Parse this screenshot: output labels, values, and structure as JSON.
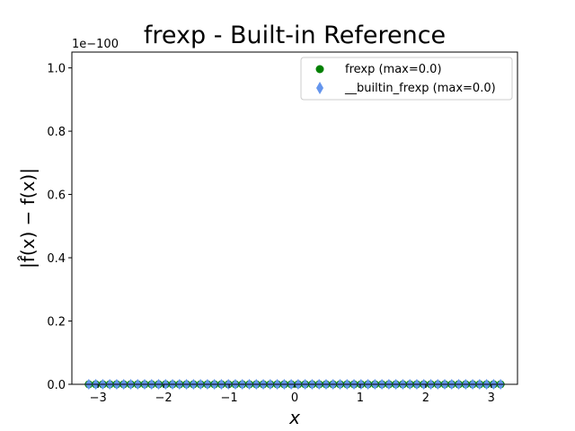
{
  "chart_data": {
    "type": "scatter",
    "title": "frexp - Built-in Reference",
    "xlabel": "x",
    "ylabel": "|f̂(x) − f(x)|",
    "y_offset_label": "1e−100",
    "xlim": [
      -3.4,
      3.4
    ],
    "ylim": [
      0,
      1.05
    ],
    "x_ticks": [
      -3,
      -2,
      -1,
      0,
      1,
      2,
      3
    ],
    "x_tick_labels": [
      "−3",
      "−2",
      "−1",
      "0",
      "1",
      "2",
      "3"
    ],
    "y_ticks": [
      0.0,
      0.2,
      0.4,
      0.6,
      0.8,
      1.0
    ],
    "y_tick_labels": [
      "0.0",
      "0.2",
      "0.4",
      "0.6",
      "0.8",
      "1.0"
    ],
    "grid": false,
    "legend_position": "upper-right",
    "x_range_of_points": [
      -3.14159,
      3.14159
    ],
    "point_count": 60,
    "series": [
      {
        "name": "frexp (max=0.0)",
        "marker": "circle",
        "color": "#008000",
        "y_value": 0
      },
      {
        "name": "__builtin_frexp (max=0.0)",
        "marker": "diamond",
        "color": "#6495ed",
        "y_value": 0
      }
    ]
  }
}
